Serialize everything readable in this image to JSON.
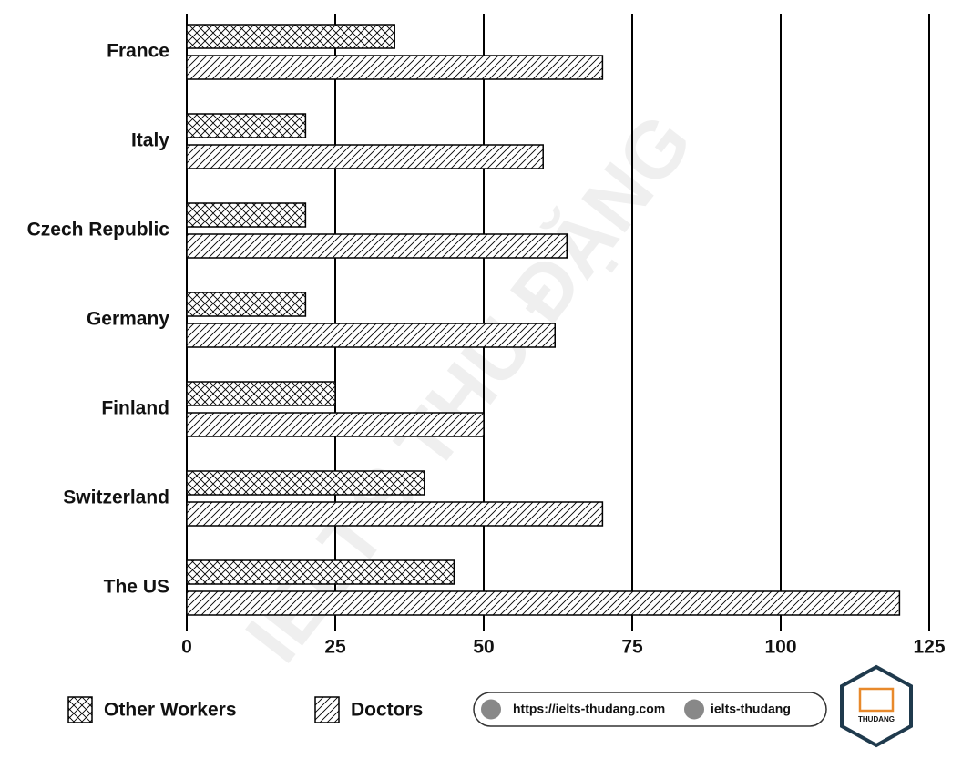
{
  "chart_data": {
    "type": "bar",
    "orientation": "horizontal",
    "categories": [
      "France",
      "Italy",
      "Czech Republic",
      "Germany",
      "Finland",
      "Switzerland",
      "The US"
    ],
    "series": [
      {
        "name": "Other Workers",
        "color": "#000000",
        "pattern": "crosshatch",
        "values": [
          35,
          20,
          20,
          20,
          25,
          40,
          45
        ]
      },
      {
        "name": "Doctors",
        "color": "#000000",
        "pattern": "diagonal",
        "values": [
          70,
          60,
          64,
          62,
          50,
          70,
          120
        ]
      }
    ],
    "xlim": [
      0,
      125
    ],
    "xticks": [
      0,
      25,
      50,
      75,
      100,
      125
    ],
    "grid": true,
    "legend": "bottom"
  },
  "watermark": "IELTS THU ĐẶNG",
  "footer": {
    "website": "https://ielts-thudang.com",
    "facebook": "ielts-thudang",
    "logo": "THUDANG"
  }
}
